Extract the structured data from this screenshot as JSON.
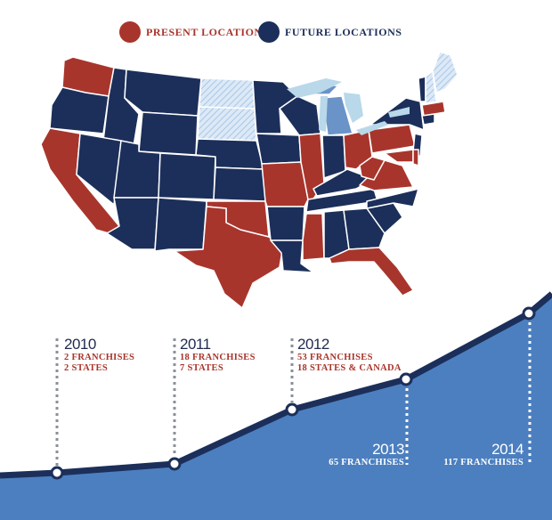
{
  "legend": {
    "present": {
      "label": "PRESENT LOCATIONS",
      "color": "#a8352c"
    },
    "future": {
      "label": "FUTURE LOCATIONS",
      "color": "#1c2f5a"
    }
  },
  "map": {
    "present_color": "#a8352c",
    "future_color": "#1c2f5a",
    "lakes_color": "#b9d8ea",
    "hatched_color": "#c4daf0"
  },
  "timeline": {
    "line_color": "#1c2f5a",
    "fill_color": "#4c7fbf",
    "milestones": [
      {
        "year": "2010",
        "lines": [
          "2 FRANCHISES",
          "2 STATES"
        ],
        "franchises": 2
      },
      {
        "year": "2011",
        "lines": [
          "18 FRANCHISES",
          "7 STATES"
        ],
        "franchises": 18
      },
      {
        "year": "2012",
        "lines": [
          "53 FRANCHISES",
          "18 STATES & CANADA"
        ],
        "franchises": 53
      },
      {
        "year": "2013",
        "lines": [
          "65 FRANCHISES"
        ],
        "franchises": 65
      },
      {
        "year": "2014",
        "lines": [
          "117 FRANCHISES"
        ],
        "franchises": 117
      }
    ]
  }
}
